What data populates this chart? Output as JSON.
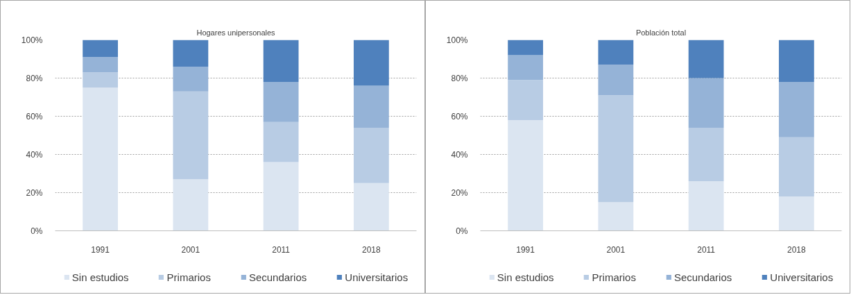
{
  "chart_data": [
    {
      "type": "bar",
      "stacked": true,
      "title": "Hogares unipersonales",
      "categories": [
        "1991",
        "2001",
        "2011",
        "2018"
      ],
      "series": [
        {
          "name": "Sin estudios",
          "color": "#dbe5f1",
          "values": [
            75,
            27,
            36,
            25
          ]
        },
        {
          "name": "Primarios",
          "color": "#b8cce4",
          "values": [
            8,
            46,
            21,
            29
          ]
        },
        {
          "name": "Secundarios",
          "color": "#95b3d7",
          "values": [
            8,
            13,
            21,
            22
          ]
        },
        {
          "name": "Universitarios",
          "color": "#4f81bd",
          "values": [
            9,
            14,
            22,
            24
          ]
        }
      ],
      "ylim": [
        0,
        100
      ],
      "yticks": [
        {
          "value": 0,
          "label": "0%"
        },
        {
          "value": 20,
          "label": "20%"
        },
        {
          "value": 40,
          "label": "40%"
        },
        {
          "value": 60,
          "label": "60%"
        },
        {
          "value": 80,
          "label": "80%"
        },
        {
          "value": 100,
          "label": "100%"
        }
      ],
      "grid": "y",
      "legend": "bottom"
    },
    {
      "type": "bar",
      "stacked": true,
      "title": "Población total",
      "categories": [
        "1991",
        "2001",
        "2011",
        "2018"
      ],
      "series": [
        {
          "name": "Sin estudios",
          "color": "#dbe5f1",
          "values": [
            58,
            15,
            26,
            18
          ]
        },
        {
          "name": "Primarios",
          "color": "#b8cce4",
          "values": [
            21,
            56,
            28,
            31
          ]
        },
        {
          "name": "Secundarios",
          "color": "#95b3d7",
          "values": [
            13,
            16,
            26,
            29
          ]
        },
        {
          "name": "Universitarios",
          "color": "#4f81bd",
          "values": [
            8,
            13,
            20,
            22
          ]
        }
      ],
      "ylim": [
        0,
        100
      ],
      "yticks": [
        {
          "value": 0,
          "label": "0%"
        },
        {
          "value": 20,
          "label": "20%"
        },
        {
          "value": 40,
          "label": "40%"
        },
        {
          "value": 60,
          "label": "60%"
        },
        {
          "value": 80,
          "label": "80%"
        },
        {
          "value": 100,
          "label": "100%"
        }
      ],
      "grid": "y",
      "legend": "bottom"
    }
  ]
}
